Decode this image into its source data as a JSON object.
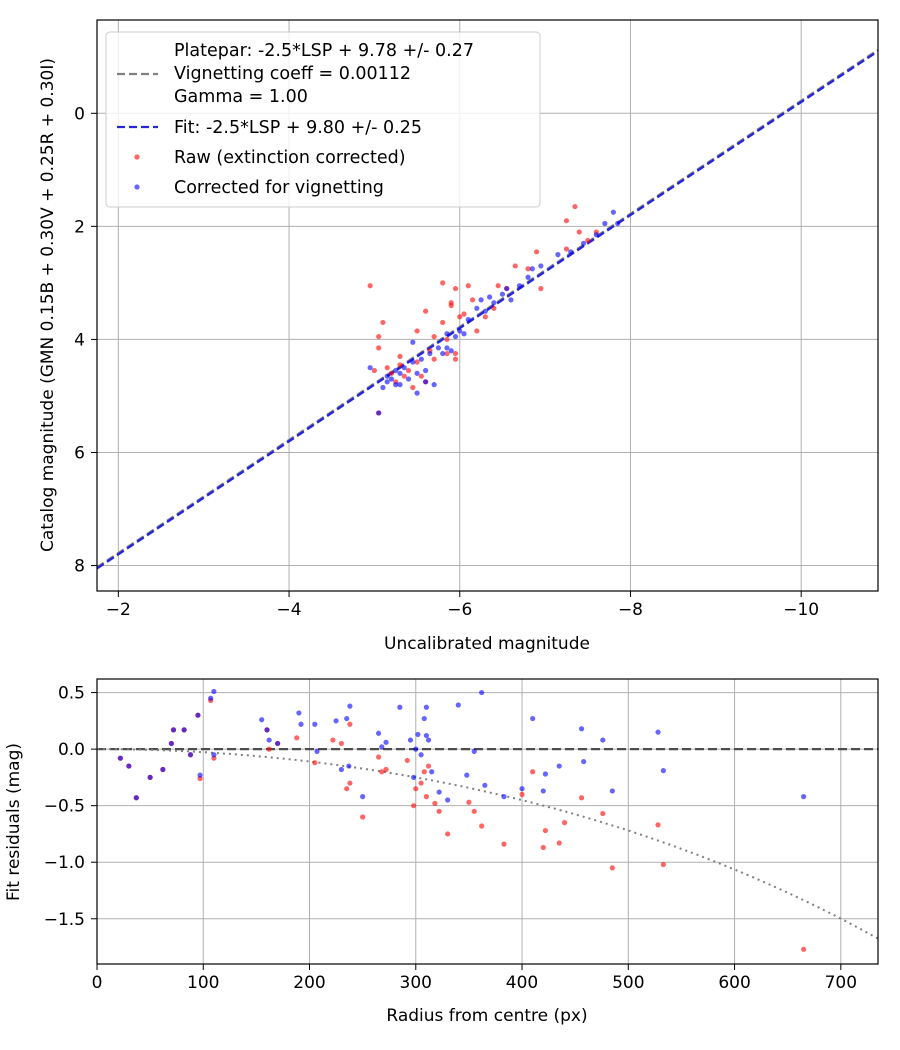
{
  "colors": {
    "raw": "#ff0000",
    "corrected": "#0000ff",
    "fit_line": "#2626d9",
    "platepar_line": "#808080",
    "grid": "#b0b0b0",
    "zero_line": "#4d4d4d"
  },
  "chart_data": [
    {
      "type": "scatter",
      "title": "",
      "xlabel": "Uncalibrated magnitude",
      "ylabel": "Catalog magnitude (GMN 0.15B + 0.30V + 0.25R + 0.30I)",
      "xlim": [
        -1.75,
        -10.9
      ],
      "ylim": [
        8.45,
        -1.65
      ],
      "xticks": [
        -2,
        -4,
        -6,
        -8,
        -10
      ],
      "xtick_labels": [
        "−2",
        "−4",
        "−6",
        "−8",
        "−10"
      ],
      "yticks": [
        0,
        2,
        4,
        6,
        8
      ],
      "ytick_labels": [
        "0",
        "2",
        "4",
        "6",
        "8"
      ],
      "grid": true,
      "legend_position": "top-left",
      "lines": [
        {
          "name": "Platepar: -2.5*LSP + 9.78 +/- 0.27\nVignetting coeff = 0.00112\nGamma = 1.00",
          "label_lines": [
            "Platepar: -2.5*LSP + 9.78 +/- 0.27",
            "Vignetting coeff = 0.00112",
            "Gamma = 1.00"
          ],
          "style": "dashed",
          "color": "#808080",
          "slope": 1,
          "intercept": 9.78
        },
        {
          "name": "Fit: -2.5*LSP + 9.80 +/- 0.25",
          "style": "dashed",
          "color": "#2626d9",
          "slope": 1,
          "intercept": 9.8
        }
      ],
      "series": [
        {
          "name": "Raw (extinction corrected)",
          "color": "#ff0000",
          "points": [
            [
              -4.95,
              3.05
            ],
            [
              -5.05,
              3.95
            ],
            [
              -5.05,
              4.15
            ],
            [
              -5.1,
              3.7
            ],
            [
              -5.0,
              4.55
            ],
            [
              -5.05,
              5.3
            ],
            [
              -5.15,
              4.5
            ],
            [
              -5.2,
              4.6
            ],
            [
              -5.3,
              4.45
            ],
            [
              -5.25,
              4.75
            ],
            [
              -5.35,
              4.65
            ],
            [
              -5.4,
              4.55
            ],
            [
              -5.45,
              4.85
            ],
            [
              -5.5,
              4.4
            ],
            [
              -5.55,
              4.65
            ],
            [
              -5.6,
              4.75
            ],
            [
              -5.6,
              3.5
            ],
            [
              -5.5,
              3.85
            ],
            [
              -5.7,
              3.95
            ],
            [
              -5.65,
              4.2
            ],
            [
              -5.8,
              3.7
            ],
            [
              -5.85,
              4.0
            ],
            [
              -5.9,
              3.4
            ],
            [
              -5.95,
              3.1
            ],
            [
              -5.9,
              3.35
            ],
            [
              -5.95,
              4.25
            ],
            [
              -6.05,
              3.55
            ],
            [
              -6.1,
              3.05
            ],
            [
              -5.8,
              3.0
            ],
            [
              -5.85,
              4.25
            ],
            [
              -5.95,
              4.35
            ],
            [
              -6.15,
              3.3
            ],
            [
              -6.2,
              3.85
            ],
            [
              -6.3,
              3.6
            ],
            [
              -6.4,
              3.45
            ],
            [
              -6.45,
              3.05
            ],
            [
              -6.55,
              3.1
            ],
            [
              -6.65,
              2.7
            ],
            [
              -6.8,
              2.75
            ],
            [
              -6.9,
              2.45
            ],
            [
              -6.95,
              3.1
            ],
            [
              -7.25,
              1.9
            ],
            [
              -7.35,
              1.65
            ],
            [
              -7.4,
              2.1
            ],
            [
              -7.25,
              2.4
            ],
            [
              -7.5,
              2.25
            ],
            [
              -7.6,
              2.1
            ],
            [
              -6.0,
              3.6
            ],
            [
              -5.7,
              4.35
            ],
            [
              -5.3,
              4.3
            ]
          ]
        },
        {
          "name": "Corrected for vignetting",
          "color": "#0000ff",
          "points": [
            [
              -4.95,
              4.5
            ],
            [
              -5.05,
              5.3
            ],
            [
              -5.1,
              4.85
            ],
            [
              -5.15,
              4.75
            ],
            [
              -5.2,
              4.7
            ],
            [
              -5.25,
              4.8
            ],
            [
              -5.3,
              4.6
            ],
            [
              -5.35,
              4.5
            ],
            [
              -5.4,
              4.7
            ],
            [
              -5.45,
              4.05
            ],
            [
              -5.5,
              4.6
            ],
            [
              -5.55,
              4.35
            ],
            [
              -5.6,
              4.55
            ],
            [
              -5.65,
              4.25
            ],
            [
              -5.7,
              4.8
            ],
            [
              -5.75,
              4.15
            ],
            [
              -5.8,
              4.25
            ],
            [
              -5.85,
              4.15
            ],
            [
              -5.9,
              4.2
            ],
            [
              -5.95,
              3.95
            ],
            [
              -6.0,
              3.85
            ],
            [
              -6.05,
              3.9
            ],
            [
              -6.1,
              3.65
            ],
            [
              -6.2,
              3.45
            ],
            [
              -6.25,
              3.3
            ],
            [
              -6.3,
              3.5
            ],
            [
              -6.35,
              3.25
            ],
            [
              -6.4,
              3.35
            ],
            [
              -6.5,
              3.2
            ],
            [
              -6.55,
              3.1
            ],
            [
              -6.6,
              3.3
            ],
            [
              -6.7,
              3.05
            ],
            [
              -6.8,
              2.9
            ],
            [
              -6.85,
              2.75
            ],
            [
              -6.95,
              2.7
            ],
            [
              -7.15,
              2.5
            ],
            [
              -7.3,
              2.45
            ],
            [
              -7.45,
              2.3
            ],
            [
              -7.6,
              2.15
            ],
            [
              -7.7,
              1.95
            ],
            [
              -7.8,
              1.75
            ],
            [
              -7.85,
              1.95
            ],
            [
              -5.3,
              4.8
            ],
            [
              -5.45,
              4.4
            ],
            [
              -5.6,
              4.75
            ],
            [
              -5.5,
              4.95
            ],
            [
              -5.25,
              4.55
            ],
            [
              -5.15,
              4.65
            ],
            [
              -5.85,
              3.9
            ]
          ]
        }
      ]
    },
    {
      "type": "scatter",
      "title": "",
      "xlabel": "Radius from centre (px)",
      "ylabel": "Fit residuals (mag)",
      "xlim": [
        0,
        735
      ],
      "ylim": [
        -1.9,
        0.62
      ],
      "xticks": [
        0,
        100,
        200,
        300,
        400,
        500,
        600,
        700
      ],
      "xtick_labels": [
        "0",
        "100",
        "200",
        "300",
        "400",
        "500",
        "600",
        "700"
      ],
      "yticks": [
        0.5,
        0.0,
        -0.5,
        -1.0,
        -1.5
      ],
      "ytick_labels": [
        "0.5",
        "0.0",
        "−0.5",
        "−1.0",
        "−1.5"
      ],
      "grid": true,
      "reference_lines": [
        {
          "name": "zero",
          "style": "dashed",
          "color": "#4d4d4d",
          "y": 0
        },
        {
          "name": "vignetting model",
          "style": "dotted",
          "color": "#808080",
          "coeff": 0.00112
        }
      ],
      "series": [
        {
          "name": "Raw (extinction corrected)",
          "color": "#ff0000",
          "points": [
            [
              22,
              -0.08
            ],
            [
              30,
              -0.15
            ],
            [
              37,
              -0.43
            ],
            [
              50,
              -0.25
            ],
            [
              62,
              -0.18
            ],
            [
              70,
              0.05
            ],
            [
              72,
              0.17
            ],
            [
              82,
              0.17
            ],
            [
              88,
              -0.05
            ],
            [
              95,
              0.3
            ],
            [
              97,
              -0.26
            ],
            [
              107,
              0.43
            ],
            [
              110,
              -0.08
            ],
            [
              160,
              0.17
            ],
            [
              162,
              0.0
            ],
            [
              170,
              0.05
            ],
            [
              188,
              0.1
            ],
            [
              205,
              -0.12
            ],
            [
              222,
              0.08
            ],
            [
              235,
              -0.35
            ],
            [
              238,
              -0.3
            ],
            [
              250,
              -0.6
            ],
            [
              265,
              -0.07
            ],
            [
              268,
              -0.2
            ],
            [
              272,
              -0.18
            ],
            [
              292,
              -0.1
            ],
            [
              298,
              -0.5
            ],
            [
              300,
              -0.35
            ],
            [
              305,
              -0.3
            ],
            [
              308,
              -0.2
            ],
            [
              310,
              -0.42
            ],
            [
              312,
              -0.15
            ],
            [
              318,
              -0.48
            ],
            [
              322,
              -0.55
            ],
            [
              330,
              -0.75
            ],
            [
              350,
              -0.47
            ],
            [
              355,
              -0.55
            ],
            [
              362,
              -0.68
            ],
            [
              383,
              -0.84
            ],
            [
              400,
              -0.4
            ],
            [
              410,
              -0.2
            ],
            [
              420,
              -0.87
            ],
            [
              422,
              -0.72
            ],
            [
              435,
              -0.83
            ],
            [
              440,
              -0.65
            ],
            [
              456,
              -0.43
            ],
            [
              476,
              -0.57
            ],
            [
              485,
              -1.05
            ],
            [
              528,
              -0.67
            ],
            [
              533,
              -1.02
            ],
            [
              665,
              -1.77
            ],
            [
              238,
              0.22
            ],
            [
              230,
              0.05
            ]
          ]
        },
        {
          "name": "Corrected for vignetting",
          "color": "#0000ff",
          "points": [
            [
              22,
              -0.08
            ],
            [
              30,
              -0.15
            ],
            [
              37,
              -0.43
            ],
            [
              50,
              -0.25
            ],
            [
              62,
              -0.18
            ],
            [
              70,
              0.05
            ],
            [
              72,
              0.17
            ],
            [
              82,
              0.17
            ],
            [
              88,
              -0.05
            ],
            [
              95,
              0.3
            ],
            [
              97,
              -0.23
            ],
            [
              107,
              0.45
            ],
            [
              110,
              0.51
            ],
            [
              110,
              -0.05
            ],
            [
              155,
              0.26
            ],
            [
              160,
              0.17
            ],
            [
              162,
              0.08
            ],
            [
              170,
              0.05
            ],
            [
              190,
              0.32
            ],
            [
              192,
              0.22
            ],
            [
              205,
              0.22
            ],
            [
              207,
              -0.02
            ],
            [
              225,
              0.25
            ],
            [
              230,
              -0.18
            ],
            [
              235,
              0.27
            ],
            [
              237,
              -0.15
            ],
            [
              238,
              0.38
            ],
            [
              250,
              -0.42
            ],
            [
              265,
              0.14
            ],
            [
              268,
              0.02
            ],
            [
              272,
              0.06
            ],
            [
              285,
              0.37
            ],
            [
              295,
              0.08
            ],
            [
              298,
              -0.25
            ],
            [
              300,
              0.0
            ],
            [
              302,
              0.13
            ],
            [
              305,
              -0.05
            ],
            [
              308,
              0.27
            ],
            [
              310,
              0.37
            ],
            [
              310,
              0.12
            ],
            [
              312,
              0.08
            ],
            [
              315,
              -0.2
            ],
            [
              322,
              -0.38
            ],
            [
              330,
              -0.45
            ],
            [
              340,
              0.39
            ],
            [
              348,
              -0.23
            ],
            [
              355,
              -0.02
            ],
            [
              362,
              0.5
            ],
            [
              365,
              -0.32
            ],
            [
              383,
              -0.42
            ],
            [
              400,
              -0.35
            ],
            [
              410,
              0.27
            ],
            [
              420,
              -0.37
            ],
            [
              422,
              -0.22
            ],
            [
              435,
              -0.15
            ],
            [
              458,
              -0.11
            ],
            [
              476,
              0.08
            ],
            [
              485,
              -0.37
            ],
            [
              528,
              0.15
            ],
            [
              533,
              -0.19
            ],
            [
              665,
              -0.42
            ],
            [
              456,
              0.18
            ]
          ]
        }
      ]
    }
  ]
}
